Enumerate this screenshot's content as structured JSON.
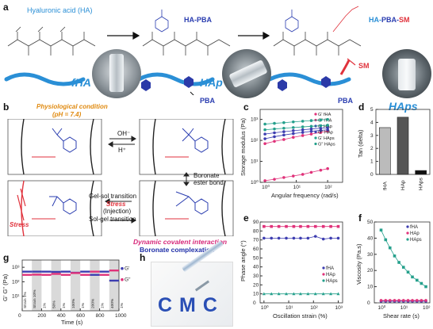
{
  "panels": {
    "a": {
      "label": "a",
      "ha_name": "Hyaluronic acid (HA)",
      "hap_name": "HA-PBA",
      "haps_name_parts": [
        "HA-",
        "PBA",
        "-",
        "SM"
      ],
      "pba_tag": "PBA",
      "sm_tag": "SM",
      "photo_labels": [
        "fHA",
        "HAp",
        "HAps"
      ]
    },
    "b": {
      "label": "b",
      "condition_line1": "Physiological condition",
      "condition_line2": "(pH = 7.4)",
      "oh_minus": "OH⁻",
      "h_plus": "H⁺",
      "boronate_line1": "Boronate",
      "boronate_line2": "ester bond",
      "gel_sol": "Gel-sol transition",
      "stress_word": "Stress",
      "injection": "(Injection)",
      "sol_gel": "Sol-gel transition",
      "stress_tag": "Stress",
      "dynamic": "Dynamic covalent interaction",
      "complexation": "Boronate complexation"
    },
    "g_axis": {
      "ylabel": "G' G'' (Pa)",
      "xlabel": "Time (s)",
      "xticks": [
        "0",
        "200",
        "400",
        "600",
        "800",
        "1000"
      ],
      "yticks": [
        "10³",
        "10²",
        "10¹"
      ]
    },
    "h": {
      "label": "h",
      "text": "CMC"
    }
  },
  "colors": {
    "blue": "#2a8fd6",
    "red": "#e0323c",
    "orange": "#e08a10",
    "magenta": "#d6287a",
    "navy": "#1f2fa8",
    "purple": "#4b1c8c"
  },
  "chart_data": [
    {
      "id": "c",
      "type": "scatter",
      "title": "",
      "xlabel": "Angular frequency (rad/s)",
      "ylabel": "Storage modulus (Pa)",
      "xscale": "log",
      "yscale": "log",
      "xlim": [
        0.7,
        300
      ],
      "ylim": [
        1,
        3000
      ],
      "xticks": [
        "10⁰",
        "10¹",
        "10²"
      ],
      "yticks": [
        "10⁰",
        "10¹",
        "10²",
        "10³"
      ],
      "legend": [
        "G' fHA",
        "G'' fHA",
        "G' HAp",
        "G'' HAp",
        "G' HAps",
        "G'' HAps"
      ],
      "x": [
        1,
        2,
        4,
        8,
        16,
        30,
        60,
        100
      ],
      "series": [
        {
          "name": "G' fHA",
          "color": "#e0327a",
          "values": [
            1.2,
            1.4,
            1.7,
            2.0,
            2.4,
            3.0,
            3.8,
            4.5
          ]
        },
        {
          "name": "G'' fHA",
          "color": "#e0327a",
          "values": [
            70,
            90,
            110,
            140,
            170,
            200,
            240,
            280
          ]
        },
        {
          "name": "G' HAp",
          "color": "#3d3db0",
          "values": [
            120,
            150,
            180,
            210,
            240,
            270,
            300,
            320
          ]
        },
        {
          "name": "G'' HAp",
          "color": "#3d3db0",
          "values": [
            200,
            230,
            260,
            290,
            320,
            350,
            380,
            400
          ]
        },
        {
          "name": "G' HAps",
          "color": "#25a08c",
          "values": [
            600,
            650,
            700,
            760,
            820,
            880,
            940,
            1000
          ]
        },
        {
          "name": "G'' HAps",
          "color": "#25a08c",
          "values": [
            320,
            350,
            380,
            410,
            440,
            470,
            500,
            530
          ]
        }
      ]
    },
    {
      "id": "d",
      "type": "bar",
      "title": "",
      "ylabel": "Tan (delta)",
      "categories": [
        "fHA",
        "HAp",
        "HAps"
      ],
      "values": [
        3.6,
        4.4,
        0.3
      ],
      "ylim": [
        0,
        5
      ],
      "yticks": [
        "0",
        "1",
        "2",
        "3",
        "4",
        "5"
      ],
      "colors": [
        "#bbbbbb",
        "#555555",
        "#111111"
      ]
    },
    {
      "id": "e",
      "type": "scatter",
      "title": "",
      "xlabel": "Oscillation strain (%)",
      "ylabel": "Phase angle (°)",
      "xscale": "log",
      "xlim": [
        0.7,
        1500
      ],
      "ylim": [
        0,
        90
      ],
      "xticks": [
        "10⁰",
        "10¹",
        "10²",
        "10³"
      ],
      "yticks": [
        "0",
        "10",
        "20",
        "30",
        "40",
        "50",
        "60",
        "70",
        "80",
        "90"
      ],
      "legend": [
        "fHA",
        "HAp",
        "HAps"
      ],
      "x": [
        1,
        2,
        4,
        8,
        16,
        30,
        60,
        120,
        250,
        500,
        1000
      ],
      "series": [
        {
          "name": "fHA",
          "color": "#3d3db0",
          "values": [
            72,
            72,
            72,
            72,
            72,
            72,
            72,
            74,
            71,
            72,
            72
          ]
        },
        {
          "name": "HAp",
          "color": "#e0327a",
          "values": [
            85,
            85,
            85,
            85,
            85,
            85,
            85,
            85,
            85,
            85,
            85
          ]
        },
        {
          "name": "HAps",
          "color": "#25a08c",
          "values": [
            10,
            10,
            10,
            10,
            10,
            10,
            10,
            10,
            10,
            10,
            10
          ]
        }
      ]
    },
    {
      "id": "f",
      "type": "scatter",
      "title": "",
      "xlabel": "Shear rate (s)",
      "ylabel": "Viscosity (Pa.s)",
      "xscale": "log",
      "xlim": [
        0.5,
        150
      ],
      "ylim": [
        0,
        50
      ],
      "xticks": [
        "10⁰",
        "10¹",
        "10²"
      ],
      "yticks": [
        "0",
        "10",
        "20",
        "30",
        "40",
        "50"
      ],
      "legend": [
        "fHA",
        "HAp",
        "HAps"
      ],
      "x": [
        1,
        1.6,
        2.5,
        4,
        6.3,
        10,
        16,
        25,
        40,
        63,
        100
      ],
      "series": [
        {
          "name": "fHA",
          "color": "#3d3db0",
          "values": [
            1,
            1,
            1,
            1,
            1,
            1,
            1,
            1,
            1,
            1,
            1
          ]
        },
        {
          "name": "HAp",
          "color": "#e0327a",
          "values": [
            1.5,
            1.5,
            1.5,
            1.5,
            1.5,
            1.5,
            1.5,
            1.5,
            1.5,
            1.5,
            1.5
          ]
        },
        {
          "name": "HAps",
          "color": "#25a08c",
          "values": [
            45,
            39,
            34,
            29,
            25,
            22,
            19,
            16,
            14,
            12,
            10
          ]
        }
      ]
    },
    {
      "id": "g",
      "type": "line",
      "title": "",
      "xlabel": "Time (s)",
      "ylabel": "G' G'' (Pa)",
      "xlim": [
        0,
        1000
      ],
      "yscale": "log",
      "legend": [
        "G'",
        "G''"
      ],
      "segment_labels": [
        "Strain 1%",
        "Strain 10%",
        "1%",
        "50%",
        "1%",
        "100%",
        "1%",
        "200%",
        "1%",
        "400%",
        "1%"
      ],
      "segments_x": [
        0,
        100,
        200,
        300,
        400,
        500,
        600,
        700,
        800,
        900,
        1000
      ],
      "series": [
        {
          "name": "G'",
          "color": "#3d3db0",
          "values": [
            500,
            500,
            500,
            480,
            500,
            420,
            500,
            300,
            500,
            120,
            500
          ]
        },
        {
          "name": "G''",
          "color": "#e0327a",
          "values": [
            300,
            310,
            300,
            350,
            300,
            400,
            300,
            500,
            300,
            600,
            300
          ]
        }
      ]
    }
  ]
}
